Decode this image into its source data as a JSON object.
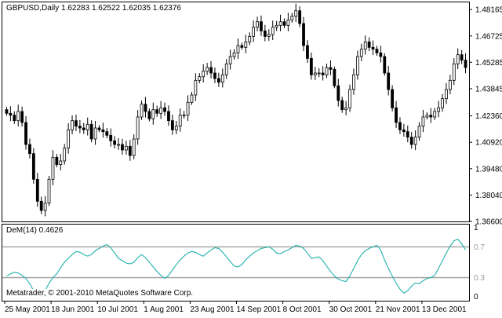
{
  "price_panel": {
    "title": "GBPUSD,Daily  1.62283 1.62522 1.62035 1.62376"
  },
  "indicator_panel": {
    "title": "DeM(14) 0.4626"
  },
  "copyright": "Metatrader, © 2001-2010 MetaQuotes Software Corp.",
  "colors": {
    "candle": "#000000",
    "indicator_line": "#20b2aa",
    "level_line": "#a0a0a0"
  },
  "chart_data": [
    {
      "type": "candlestick",
      "symbol": "GBPUSD",
      "timeframe": "Daily",
      "ylim": [
        1.366,
        1.486
      ],
      "y_ticks": [
        "1.48165",
        "1.46725",
        "1.45285",
        "1.43845",
        "1.42360",
        "1.40920",
        "1.39480",
        "1.38040",
        "1.36600"
      ],
      "x_ticks": [
        "25 May 2001",
        "18 Jun 2001",
        "10 Jul 2001",
        "1 Aug 2001",
        "23 Aug 2001",
        "14 Sep 2001",
        "8 Oct 2001",
        "30 Oct 2001",
        "21 Nov 2001",
        "13 Dec 2001"
      ],
      "close": [
        1.425,
        1.424,
        1.421,
        1.426,
        1.42,
        1.408,
        1.403,
        1.389,
        1.377,
        1.372,
        1.376,
        1.389,
        1.401,
        1.397,
        1.399,
        1.406,
        1.416,
        1.421,
        1.418,
        1.417,
        1.416,
        1.419,
        1.411,
        1.417,
        1.416,
        1.415,
        1.413,
        1.41,
        1.408,
        1.408,
        1.405,
        1.407,
        1.402,
        1.411,
        1.423,
        1.43,
        1.426,
        1.422,
        1.427,
        1.425,
        1.428,
        1.426,
        1.421,
        1.416,
        1.418,
        1.424,
        1.424,
        1.431,
        1.435,
        1.443,
        1.445,
        1.448,
        1.45,
        1.447,
        1.444,
        1.442,
        1.446,
        1.452,
        1.456,
        1.458,
        1.462,
        1.461,
        1.464,
        1.467,
        1.472,
        1.475,
        1.47,
        1.467,
        1.468,
        1.472,
        1.473,
        1.475,
        1.473,
        1.476,
        1.478,
        1.481,
        1.474,
        1.462,
        1.455,
        1.446,
        1.447,
        1.447,
        1.446,
        1.45,
        1.449,
        1.44,
        1.432,
        1.427,
        1.428,
        1.438,
        1.446,
        1.456,
        1.46,
        1.464,
        1.461,
        1.46,
        1.458,
        1.456,
        1.447,
        1.438,
        1.428,
        1.42,
        1.416,
        1.415,
        1.412,
        1.408,
        1.412,
        1.418,
        1.423,
        1.424,
        1.423,
        1.426,
        1.428,
        1.433,
        1.438,
        1.443,
        1.452,
        1.457,
        1.454,
        1.45
      ]
    },
    {
      "type": "line",
      "name": "DeM(14)",
      "ylim": [
        0,
        1
      ],
      "y_ticks": [
        "1",
        "0.7",
        "0.3",
        "0"
      ],
      "levels": [
        0.7,
        0.3
      ],
      "values": [
        0.32,
        0.35,
        0.37,
        0.36,
        0.33,
        0.29,
        0.22,
        0.13,
        0.08,
        0.06,
        0.13,
        0.23,
        0.3,
        0.35,
        0.43,
        0.5,
        0.55,
        0.6,
        0.64,
        0.63,
        0.6,
        0.58,
        0.6,
        0.65,
        0.68,
        0.71,
        0.73,
        0.69,
        0.62,
        0.55,
        0.52,
        0.49,
        0.48,
        0.5,
        0.56,
        0.6,
        0.56,
        0.5,
        0.44,
        0.38,
        0.33,
        0.29,
        0.33,
        0.4,
        0.47,
        0.53,
        0.58,
        0.62,
        0.64,
        0.63,
        0.6,
        0.58,
        0.62,
        0.66,
        0.69,
        0.68,
        0.63,
        0.57,
        0.51,
        0.45,
        0.44,
        0.47,
        0.53,
        0.58,
        0.62,
        0.65,
        0.68,
        0.69,
        0.7,
        0.67,
        0.62,
        0.61,
        0.64,
        0.66,
        0.69,
        0.72,
        0.71,
        0.68,
        0.62,
        0.55,
        0.56,
        0.57,
        0.52,
        0.45,
        0.38,
        0.32,
        0.28,
        0.26,
        0.25,
        0.32,
        0.42,
        0.52,
        0.6,
        0.65,
        0.68,
        0.7,
        0.72,
        0.66,
        0.53,
        0.42,
        0.32,
        0.23,
        0.15,
        0.1,
        0.13,
        0.19,
        0.23,
        0.22,
        0.26,
        0.29,
        0.3,
        0.33,
        0.42,
        0.52,
        0.62,
        0.71,
        0.78,
        0.8,
        0.74,
        0.66
      ]
    }
  ]
}
